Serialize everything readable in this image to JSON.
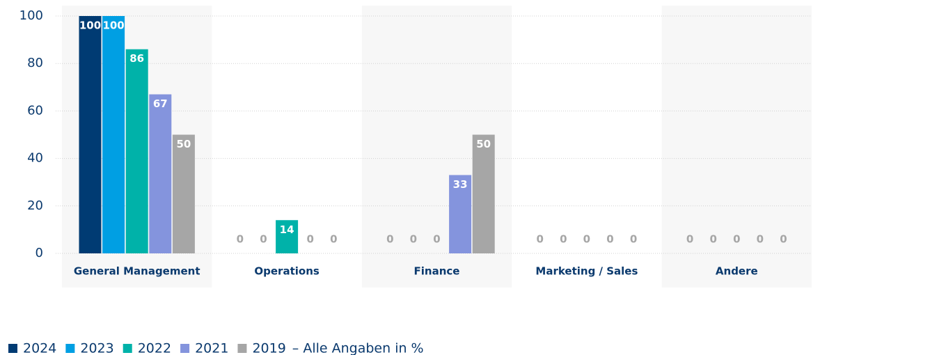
{
  "chart_data": {
    "type": "bar",
    "categories": [
      "General Management",
      "Operations",
      "Finance",
      "Marketing / Sales",
      "Andere"
    ],
    "series": [
      {
        "name": "2024",
        "color": "#003b73",
        "values": [
          100,
          0,
          0,
          0,
          0
        ]
      },
      {
        "name": "2023",
        "color": "#009fe3",
        "values": [
          100,
          0,
          0,
          0,
          0
        ]
      },
      {
        "name": "2022",
        "color": "#00b2a9",
        "values": [
          86,
          14,
          0,
          0,
          0
        ]
      },
      {
        "name": "2021",
        "color": "#8494dd",
        "values": [
          67,
          0,
          33,
          0,
          0
        ]
      },
      {
        "name": "2019",
        "color": "#a6a6a6",
        "values": [
          50,
          0,
          50,
          0,
          0
        ]
      }
    ],
    "note": "– Alle Angaben in %",
    "ylim": [
      0,
      100
    ],
    "yticks": [
      0,
      20,
      40,
      60,
      80,
      100
    ],
    "grid": true
  }
}
